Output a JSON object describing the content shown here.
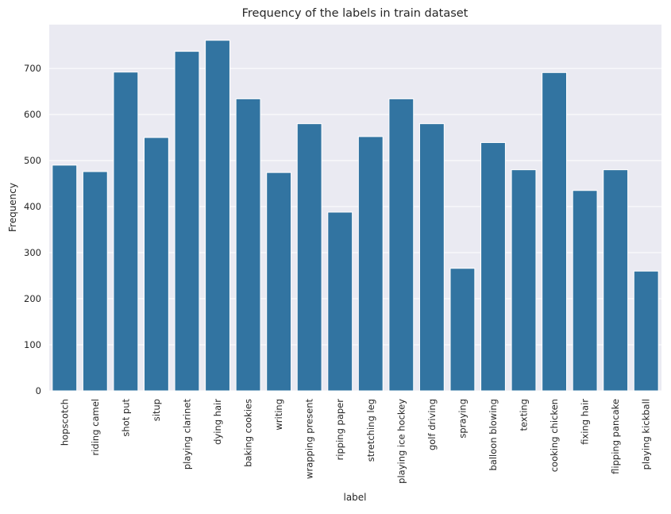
{
  "chart_data": {
    "type": "bar",
    "title": "Frequency of the labels in train dataset",
    "xlabel": "label",
    "ylabel": "Frequency",
    "ylim": [
      0,
      795
    ],
    "yticks": [
      0,
      100,
      200,
      300,
      400,
      500,
      600,
      700
    ],
    "grid": true,
    "legend": "none",
    "bar_color": "#3274a1",
    "background_color": "#eaeaf2",
    "grid_color": "#ffffff",
    "categories": [
      "hopscotch",
      "riding camel",
      "shot put",
      "situp",
      "playing clarinet",
      "dying hair",
      "baking cookies",
      "writing",
      "wrapping present",
      "ripping paper",
      "stretching leg",
      "playing ice hockey",
      "golf driving",
      "spraying",
      "balloon blowing",
      "texting",
      "cooking chicken",
      "fixing hair",
      "flipping pancake",
      "playing kickball"
    ],
    "values": [
      490,
      476,
      692,
      550,
      737,
      761,
      634,
      474,
      580,
      388,
      552,
      634,
      580,
      266,
      539,
      480,
      691,
      435,
      480,
      260
    ]
  }
}
